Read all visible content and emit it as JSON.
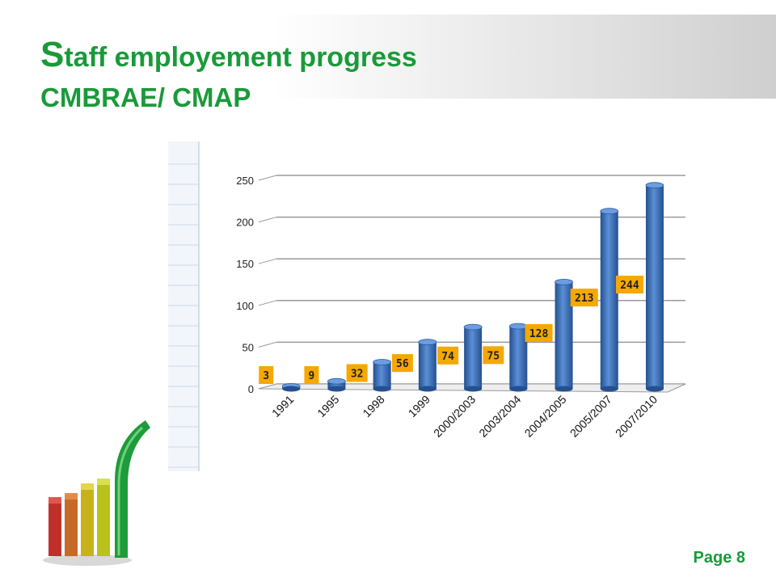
{
  "slide": {
    "title_initial": "S",
    "title_rest": "taff employement progress",
    "subtitle": "CMBRAE/ CMAP",
    "page_label": "Page 8"
  },
  "colors": {
    "title_green": "#1a9a3a",
    "bar_blue": "#3a6fb5",
    "label_bg": "#f5a800"
  },
  "chart_data": {
    "type": "bar",
    "title": "",
    "xlabel": "",
    "ylabel": "",
    "categories": [
      "1991",
      "1995",
      "1998",
      "1999",
      "2000/2003",
      "2003/2004",
      "2004/2005",
      "2005/2007",
      "2007/2010"
    ],
    "values": [
      3,
      9,
      32,
      56,
      74,
      75,
      128,
      213,
      244
    ],
    "yticks": [
      0,
      50,
      100,
      150,
      200,
      250
    ],
    "ylim": [
      0,
      250
    ],
    "grid": true,
    "legend": "none"
  }
}
